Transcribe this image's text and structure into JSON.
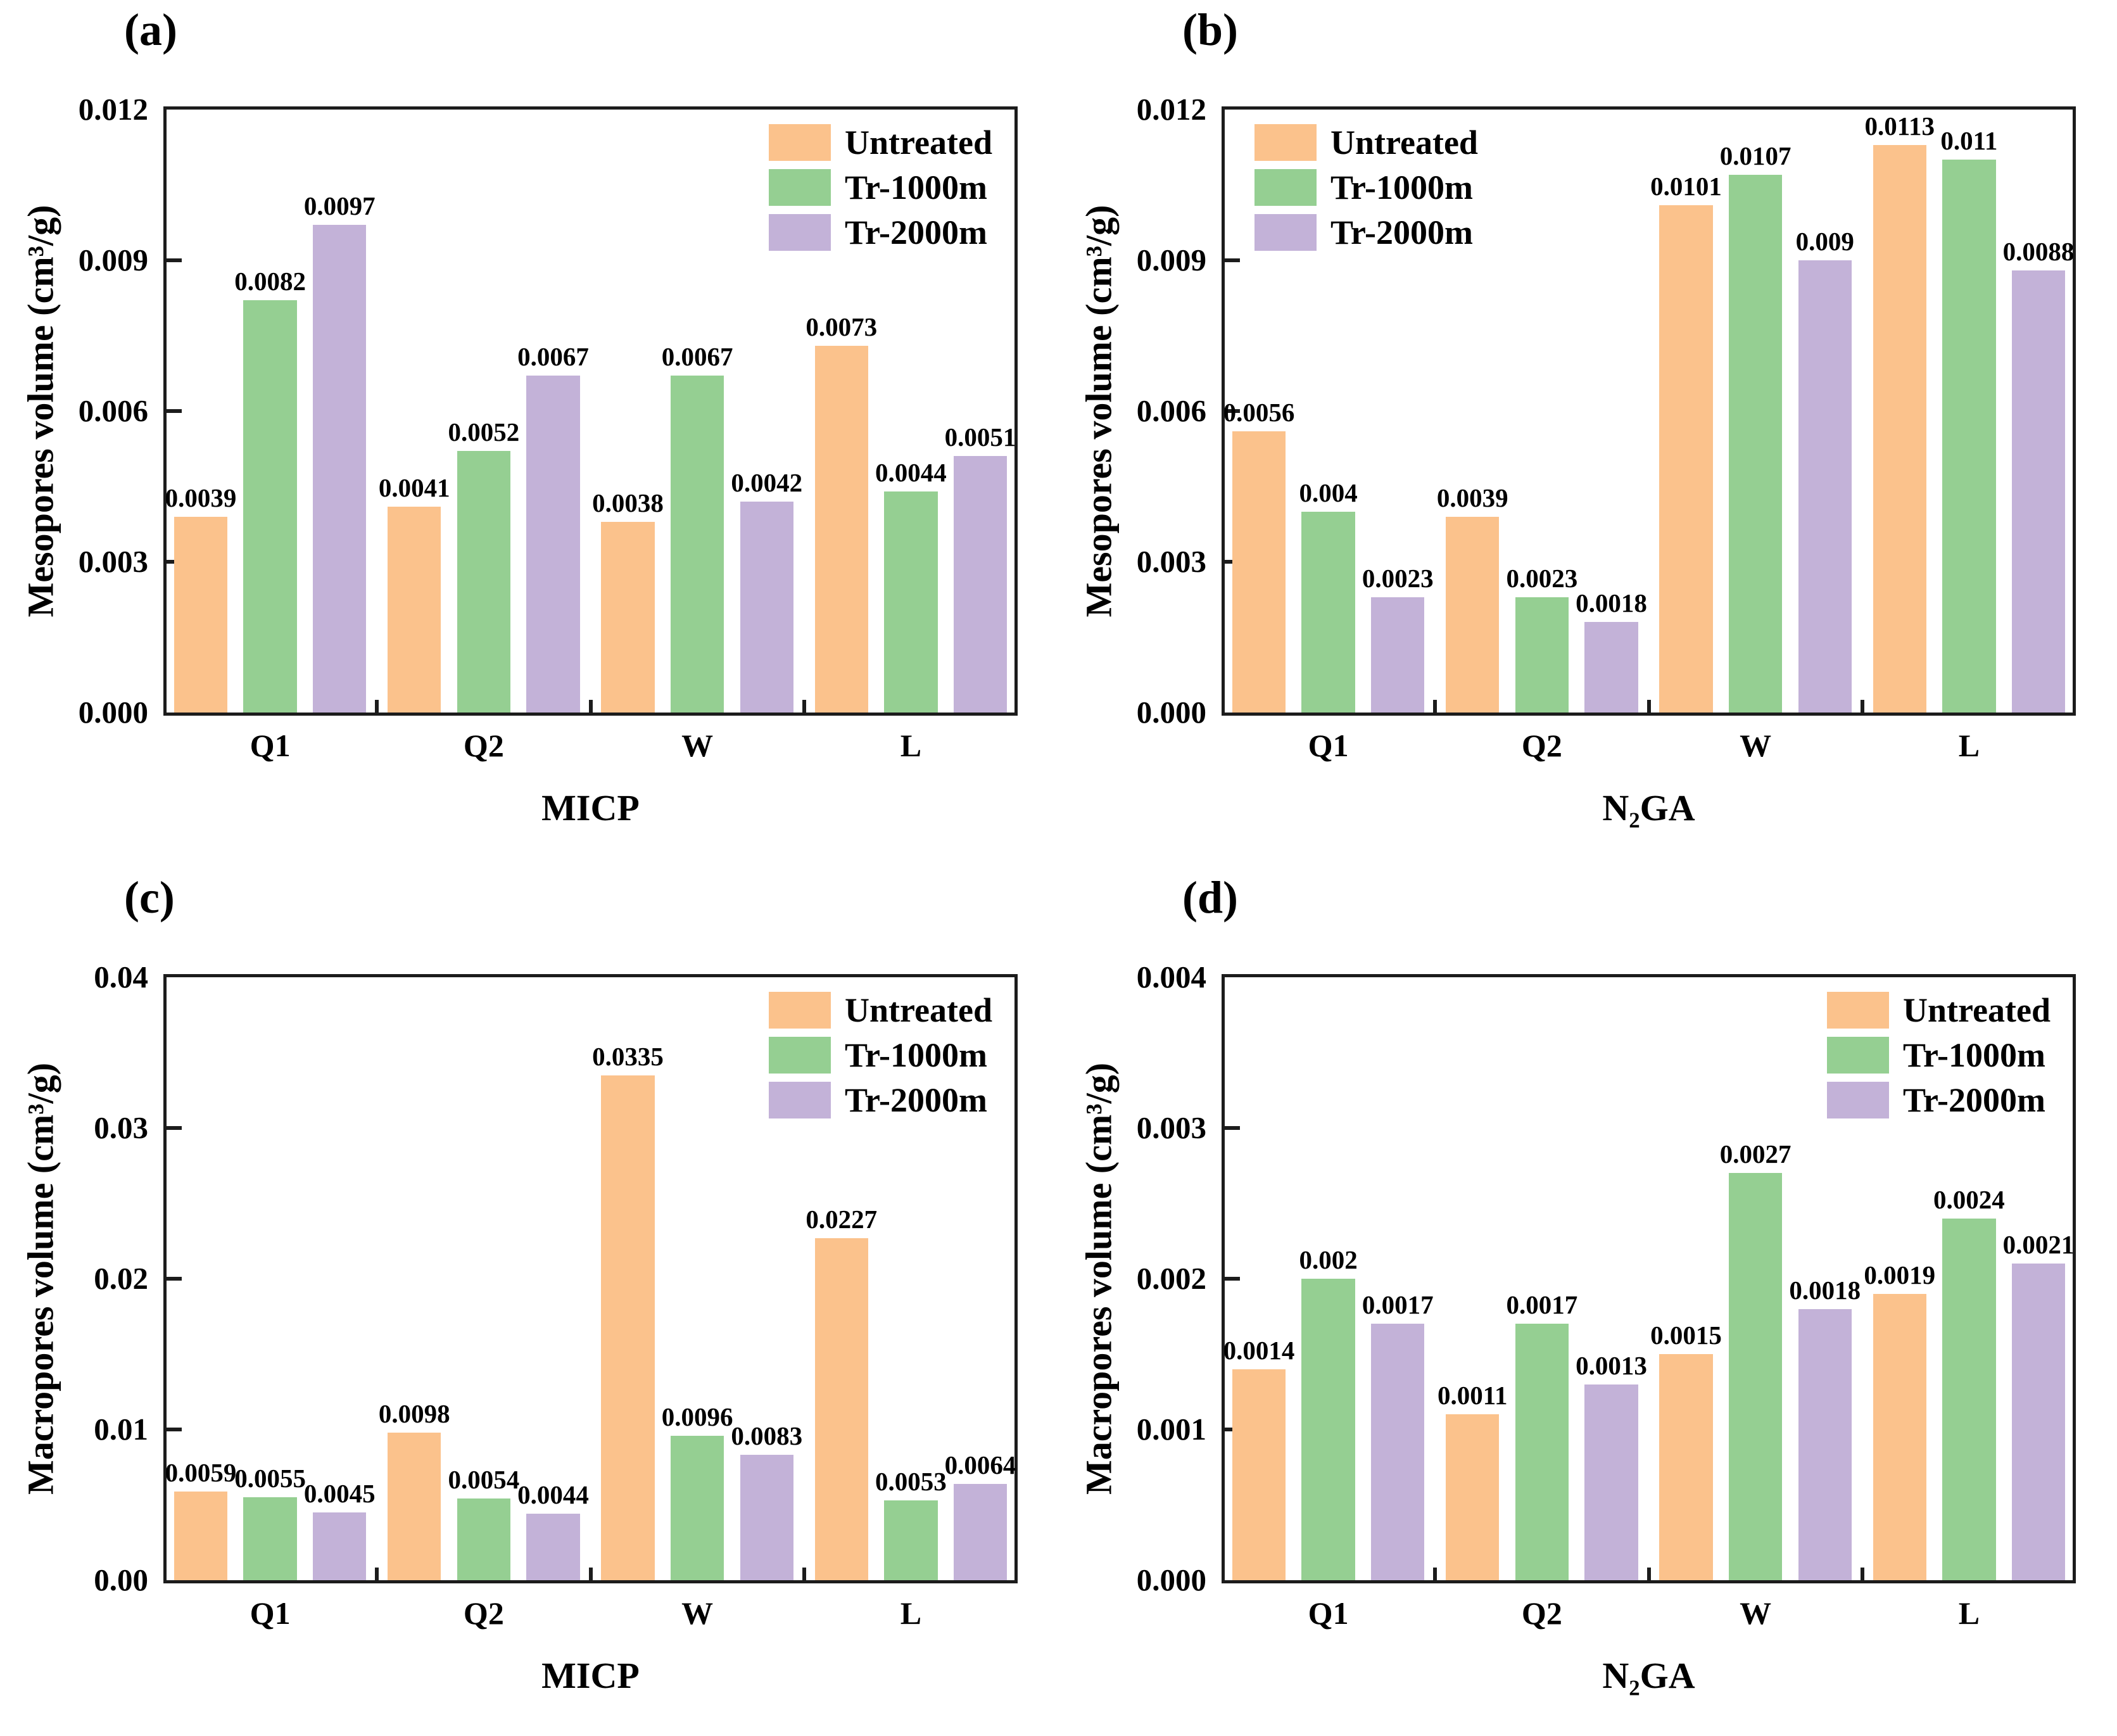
{
  "figure": {
    "background": "#ffffff",
    "axis_color": "#1c1c1c",
    "legend_labels": [
      "Untreated",
      "Tr-1000m",
      "Tr-2000m"
    ],
    "series_colors": {
      "Untreated": "#FBC28C",
      "Tr-1000m": "#95CF92",
      "Tr-2000m": "#C3B2D8"
    }
  },
  "chart_data": [
    {
      "type": "bar",
      "panel_label": "(a)",
      "xlabel": "MICP",
      "ylabel": "Mesopores volume (cm³/g)",
      "categories": [
        "Q1",
        "Q2",
        "W",
        "L"
      ],
      "ylim": [
        0,
        0.012
      ],
      "yticks": [
        "0.000",
        "0.003",
        "0.006",
        "0.009",
        "0.012"
      ],
      "grid": false,
      "legend_position": "top-right",
      "series": [
        {
          "name": "Untreated",
          "color": "#FBC28C",
          "values": [
            0.0039,
            0.0041,
            0.0038,
            0.0073
          ],
          "labels": [
            "0.0039",
            "0.0041",
            "0.0038",
            "0.0073"
          ]
        },
        {
          "name": "Tr-1000m",
          "color": "#95CF92",
          "values": [
            0.0082,
            0.0052,
            0.0067,
            0.0044
          ],
          "labels": [
            "0.0082",
            "0.0052",
            "0.0067",
            "0.0044"
          ]
        },
        {
          "name": "Tr-2000m",
          "color": "#C3B2D8",
          "values": [
            0.0097,
            0.0067,
            0.0042,
            0.0051
          ],
          "labels": [
            "0.0097",
            "0.0067",
            "0.0042",
            "0.0051"
          ]
        }
      ]
    },
    {
      "type": "bar",
      "panel_label": "(b)",
      "xlabel": "N₂GA",
      "ylabel": "Mesopores volume (cm³/g)",
      "categories": [
        "Q1",
        "Q2",
        "W",
        "L"
      ],
      "ylim": [
        0,
        0.012
      ],
      "yticks": [
        "0.000",
        "0.003",
        "0.006",
        "0.009",
        "0.012"
      ],
      "grid": false,
      "legend_position": "top-left",
      "series": [
        {
          "name": "Untreated",
          "color": "#FBC28C",
          "values": [
            0.0056,
            0.0039,
            0.0101,
            0.0113
          ],
          "labels": [
            "0.0056",
            "0.0039",
            "0.0101",
            "0.0113"
          ]
        },
        {
          "name": "Tr-1000m",
          "color": "#95CF92",
          "values": [
            0.004,
            0.0023,
            0.0107,
            0.011
          ],
          "labels": [
            "0.004",
            "0.0023",
            "0.0107",
            "0.011"
          ]
        },
        {
          "name": "Tr-2000m",
          "color": "#C3B2D8",
          "values": [
            0.0023,
            0.0018,
            0.009,
            0.0088
          ],
          "labels": [
            "0.0023",
            "0.0018",
            "0.009",
            "0.0088"
          ]
        }
      ]
    },
    {
      "type": "bar",
      "panel_label": "(c)",
      "xlabel": "MICP",
      "ylabel": "Macropores volume (cm³/g)",
      "categories": [
        "Q1",
        "Q2",
        "W",
        "L"
      ],
      "ylim": [
        0,
        0.04
      ],
      "yticks": [
        "0.00",
        "0.01",
        "0.02",
        "0.03",
        "0.04"
      ],
      "grid": false,
      "legend_position": "top-right",
      "series": [
        {
          "name": "Untreated",
          "color": "#FBC28C",
          "values": [
            0.0059,
            0.0098,
            0.0335,
            0.0227
          ],
          "labels": [
            "0.0059",
            "0.0098",
            "0.0335",
            "0.0227"
          ]
        },
        {
          "name": "Tr-1000m",
          "color": "#95CF92",
          "values": [
            0.0055,
            0.0054,
            0.0096,
            0.0053
          ],
          "labels": [
            "0.0055",
            "0.0054",
            "0.0096",
            "0.0053"
          ]
        },
        {
          "name": "Tr-2000m",
          "color": "#C3B2D8",
          "values": [
            0.0045,
            0.0044,
            0.0083,
            0.0064
          ],
          "labels": [
            "0.0045",
            "0.0044",
            "0.0083",
            "0.0064"
          ]
        }
      ]
    },
    {
      "type": "bar",
      "panel_label": "(d)",
      "xlabel": "N₂GA",
      "ylabel": "Macropores volume (cm³/g)",
      "categories": [
        "Q1",
        "Q2",
        "W",
        "L"
      ],
      "ylim": [
        0,
        0.004
      ],
      "yticks": [
        "0.000",
        "0.001",
        "0.002",
        "0.003",
        "0.004"
      ],
      "grid": false,
      "legend_position": "top-right",
      "series": [
        {
          "name": "Untreated",
          "color": "#FBC28C",
          "values": [
            0.0014,
            0.0011,
            0.0015,
            0.0019
          ],
          "labels": [
            "0.0014",
            "0.0011",
            "0.0015",
            "0.0019"
          ]
        },
        {
          "name": "Tr-1000m",
          "color": "#95CF92",
          "values": [
            0.002,
            0.0017,
            0.0027,
            0.0024
          ],
          "labels": [
            "0.002",
            "0.0017",
            "0.0027",
            "0.0024"
          ]
        },
        {
          "name": "Tr-2000m",
          "color": "#C3B2D8",
          "values": [
            0.0017,
            0.0013,
            0.0018,
            0.0021
          ],
          "labels": [
            "0.0017",
            "0.0013",
            "0.0018",
            "0.0021"
          ]
        }
      ]
    }
  ]
}
